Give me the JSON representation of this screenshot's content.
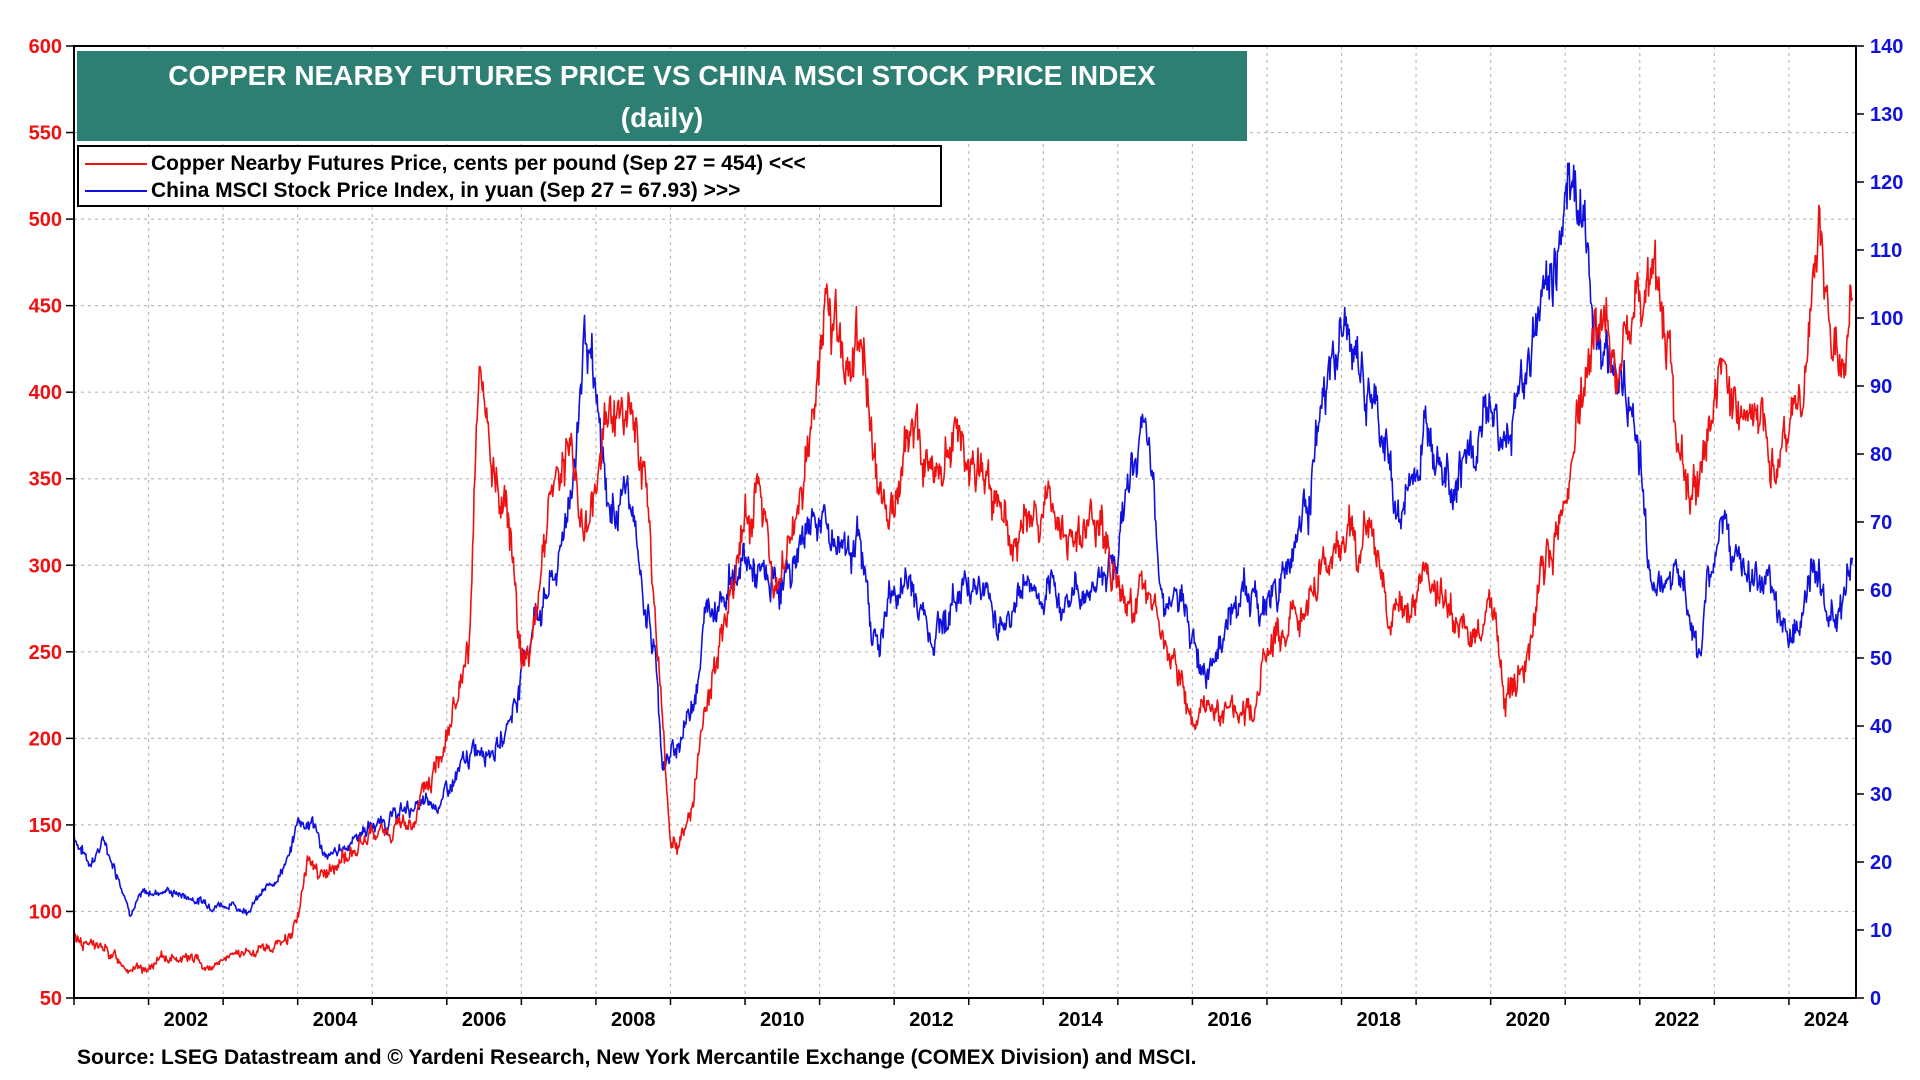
{
  "title": {
    "line1": "COPPER NEARBY FUTURES PRICE VS CHINA MSCI STOCK PRICE INDEX",
    "line2": "(daily)"
  },
  "legend": {
    "copper": "Copper Nearby Futures Price, cents per pound (Sep 27 = 454) <<<",
    "msci": "China MSCI Stock Price Index, in yuan (Sep 27 = 67.93) >>>"
  },
  "source": "Source: LSEG Datastream and © Yardeni Research, New York Mercantile Exchange (COMEX Division) and MSCI.",
  "colors": {
    "copper": "#ee1111",
    "msci": "#1111dd",
    "title_bg": "#2e7f73",
    "grid": "#bbbbbb"
  },
  "chart_data": {
    "type": "line",
    "x_range": [
      2001.0,
      2024.9
    ],
    "x_ticks": [
      "2002",
      "2004",
      "2006",
      "2008",
      "2010",
      "2012",
      "2014",
      "2016",
      "2018",
      "2020",
      "2022",
      "2024"
    ],
    "left_axis": {
      "range": [
        50,
        600
      ],
      "ticks": [
        "50",
        "100",
        "150",
        "200",
        "250",
        "300",
        "350",
        "400",
        "450",
        "500",
        "550",
        "600"
      ]
    },
    "right_axis": {
      "range": [
        0,
        140
      ],
      "ticks": [
        "0",
        "10",
        "20",
        "30",
        "40",
        "50",
        "60",
        "70",
        "80",
        "90",
        "100",
        "110",
        "120",
        "130",
        "140"
      ]
    },
    "series": [
      {
        "name": "Copper Nearby Futures Price, cents per pound",
        "axis": "left",
        "points": [
          [
            2001.0,
            85
          ],
          [
            2001.3,
            80
          ],
          [
            2001.6,
            72
          ],
          [
            2001.9,
            65
          ],
          [
            2002.2,
            72
          ],
          [
            2002.5,
            75
          ],
          [
            2002.8,
            68
          ],
          [
            2003.0,
            72
          ],
          [
            2003.3,
            75
          ],
          [
            2003.6,
            78
          ],
          [
            2003.9,
            85
          ],
          [
            2004.0,
            100
          ],
          [
            2004.15,
            130
          ],
          [
            2004.3,
            125
          ],
          [
            2004.4,
            120
          ],
          [
            2004.6,
            130
          ],
          [
            2004.9,
            140
          ],
          [
            2005.2,
            145
          ],
          [
            2005.5,
            150
          ],
          [
            2005.8,
            175
          ],
          [
            2006.0,
            210
          ],
          [
            2006.3,
            240
          ],
          [
            2006.4,
            370
          ],
          [
            2006.45,
            400
          ],
          [
            2006.6,
            350
          ],
          [
            2006.8,
            340
          ],
          [
            2007.0,
            255
          ],
          [
            2007.1,
            250
          ],
          [
            2007.4,
            345
          ],
          [
            2007.6,
            370
          ],
          [
            2007.9,
            320
          ],
          [
            2008.2,
            395
          ],
          [
            2008.5,
            380
          ],
          [
            2008.7,
            330
          ],
          [
            2008.9,
            200
          ],
          [
            2009.0,
            140
          ],
          [
            2009.1,
            135
          ],
          [
            2009.3,
            165
          ],
          [
            2009.5,
            215
          ],
          [
            2009.8,
            285
          ],
          [
            2010.0,
            330
          ],
          [
            2010.2,
            350
          ],
          [
            2010.4,
            280
          ],
          [
            2010.7,
            330
          ],
          [
            2010.9,
            380
          ],
          [
            2011.1,
            445
          ],
          [
            2011.4,
            420
          ],
          [
            2011.6,
            435
          ],
          [
            2011.8,
            330
          ],
          [
            2012.0,
            340
          ],
          [
            2012.2,
            385
          ],
          [
            2012.5,
            355
          ],
          [
            2012.8,
            365
          ],
          [
            2013.0,
            370
          ],
          [
            2013.3,
            340
          ],
          [
            2013.6,
            315
          ],
          [
            2013.9,
            330
          ],
          [
            2014.1,
            330
          ],
          [
            2014.3,
            310
          ],
          [
            2014.6,
            320
          ],
          [
            2014.9,
            300
          ],
          [
            2015.1,
            270
          ],
          [
            2015.3,
            285
          ],
          [
            2015.6,
            265
          ],
          [
            2015.9,
            220
          ],
          [
            2016.0,
            205
          ],
          [
            2016.3,
            215
          ],
          [
            2016.6,
            220
          ],
          [
            2016.8,
            215
          ],
          [
            2017.0,
            255
          ],
          [
            2017.3,
            265
          ],
          [
            2017.6,
            275
          ],
          [
            2017.9,
            315
          ],
          [
            2018.2,
            310
          ],
          [
            2018.4,
            315
          ],
          [
            2018.6,
            275
          ],
          [
            2018.9,
            275
          ],
          [
            2019.1,
            280
          ],
          [
            2019.4,
            275
          ],
          [
            2019.6,
            265
          ],
          [
            2019.9,
            265
          ],
          [
            2020.0,
            280
          ],
          [
            2020.2,
            220
          ],
          [
            2020.4,
            240
          ],
          [
            2020.7,
            290
          ],
          [
            2020.9,
            320
          ],
          [
            2021.1,
            360
          ],
          [
            2021.3,
            420
          ],
          [
            2021.5,
            450
          ],
          [
            2021.7,
            425
          ],
          [
            2021.9,
            440
          ],
          [
            2022.2,
            470
          ],
          [
            2022.4,
            430
          ],
          [
            2022.5,
            360
          ],
          [
            2022.7,
            345
          ],
          [
            2022.9,
            375
          ],
          [
            2023.1,
            410
          ],
          [
            2023.3,
            385
          ],
          [
            2023.6,
            385
          ],
          [
            2023.9,
            365
          ],
          [
            2024.0,
            380
          ],
          [
            2024.2,
            395
          ],
          [
            2024.35,
            460
          ],
          [
            2024.4,
            495
          ],
          [
            2024.5,
            445
          ],
          [
            2024.6,
            415
          ],
          [
            2024.75,
            405
          ],
          [
            2024.85,
            454
          ]
        ]
      },
      {
        "name": "China MSCI Stock Price Index, in yuan",
        "axis": "right",
        "points": [
          [
            2001.0,
            24
          ],
          [
            2001.2,
            20
          ],
          [
            2001.4,
            23
          ],
          [
            2001.6,
            18
          ],
          [
            2001.75,
            13
          ],
          [
            2001.9,
            15
          ],
          [
            2002.2,
            16
          ],
          [
            2002.5,
            15
          ],
          [
            2002.8,
            14
          ],
          [
            2003.0,
            14
          ],
          [
            2003.3,
            13
          ],
          [
            2003.6,
            16
          ],
          [
            2003.9,
            21
          ],
          [
            2004.0,
            26
          ],
          [
            2004.2,
            26
          ],
          [
            2004.4,
            20
          ],
          [
            2004.6,
            22
          ],
          [
            2004.9,
            25
          ],
          [
            2005.2,
            26
          ],
          [
            2005.5,
            28
          ],
          [
            2005.8,
            28
          ],
          [
            2006.0,
            30
          ],
          [
            2006.3,
            35
          ],
          [
            2006.5,
            38
          ],
          [
            2006.7,
            37
          ],
          [
            2006.9,
            43
          ],
          [
            2007.0,
            48
          ],
          [
            2007.2,
            57
          ],
          [
            2007.5,
            63
          ],
          [
            2007.75,
            83
          ],
          [
            2007.85,
            100
          ],
          [
            2008.0,
            85
          ],
          [
            2008.2,
            70
          ],
          [
            2008.4,
            76
          ],
          [
            2008.6,
            62
          ],
          [
            2008.8,
            50
          ],
          [
            2008.9,
            34
          ],
          [
            2009.1,
            37
          ],
          [
            2009.3,
            44
          ],
          [
            2009.5,
            58
          ],
          [
            2009.8,
            62
          ],
          [
            2010.0,
            64
          ],
          [
            2010.3,
            60
          ],
          [
            2010.6,
            62
          ],
          [
            2010.9,
            72
          ],
          [
            2011.2,
            67
          ],
          [
            2011.5,
            68
          ],
          [
            2011.7,
            55
          ],
          [
            2011.8,
            52
          ],
          [
            2011.95,
            59
          ],
          [
            2012.2,
            61
          ],
          [
            2012.5,
            54
          ],
          [
            2012.8,
            58
          ],
          [
            2013.0,
            63
          ],
          [
            2013.3,
            58
          ],
          [
            2013.5,
            55
          ],
          [
            2013.8,
            62
          ],
          [
            2014.0,
            57
          ],
          [
            2014.3,
            59
          ],
          [
            2014.7,
            61
          ],
          [
            2015.0,
            67
          ],
          [
            2015.3,
            84
          ],
          [
            2015.5,
            72
          ],
          [
            2015.6,
            60
          ],
          [
            2015.8,
            58
          ],
          [
            2016.0,
            53
          ],
          [
            2016.1,
            49
          ],
          [
            2016.4,
            54
          ],
          [
            2016.7,
            60
          ],
          [
            2016.9,
            57
          ],
          [
            2017.2,
            62
          ],
          [
            2017.5,
            72
          ],
          [
            2017.8,
            88
          ],
          [
            2018.0,
            98
          ],
          [
            2018.2,
            93
          ],
          [
            2018.4,
            87
          ],
          [
            2018.6,
            80
          ],
          [
            2018.8,
            70
          ],
          [
            2019.0,
            79
          ],
          [
            2019.3,
            86
          ],
          [
            2019.5,
            78
          ],
          [
            2019.8,
            80
          ],
          [
            2020.0,
            88
          ],
          [
            2020.2,
            80
          ],
          [
            2020.5,
            95
          ],
          [
            2020.7,
            103
          ],
          [
            2020.9,
            110
          ],
          [
            2021.1,
            125
          ],
          [
            2021.2,
            115
          ],
          [
            2021.4,
            100
          ],
          [
            2021.6,
            95
          ],
          [
            2021.8,
            90
          ],
          [
            2022.0,
            80
          ],
          [
            2022.1,
            65
          ],
          [
            2022.3,
            60
          ],
          [
            2022.5,
            65
          ],
          [
            2022.8,
            50
          ],
          [
            2022.9,
            58
          ],
          [
            2023.1,
            72
          ],
          [
            2023.3,
            64
          ],
          [
            2023.6,
            60
          ],
          [
            2023.9,
            56
          ],
          [
            2024.0,
            53
          ],
          [
            2024.2,
            58
          ],
          [
            2024.3,
            63
          ],
          [
            2024.5,
            58
          ],
          [
            2024.7,
            57
          ],
          [
            2024.85,
            68
          ]
        ]
      }
    ]
  }
}
